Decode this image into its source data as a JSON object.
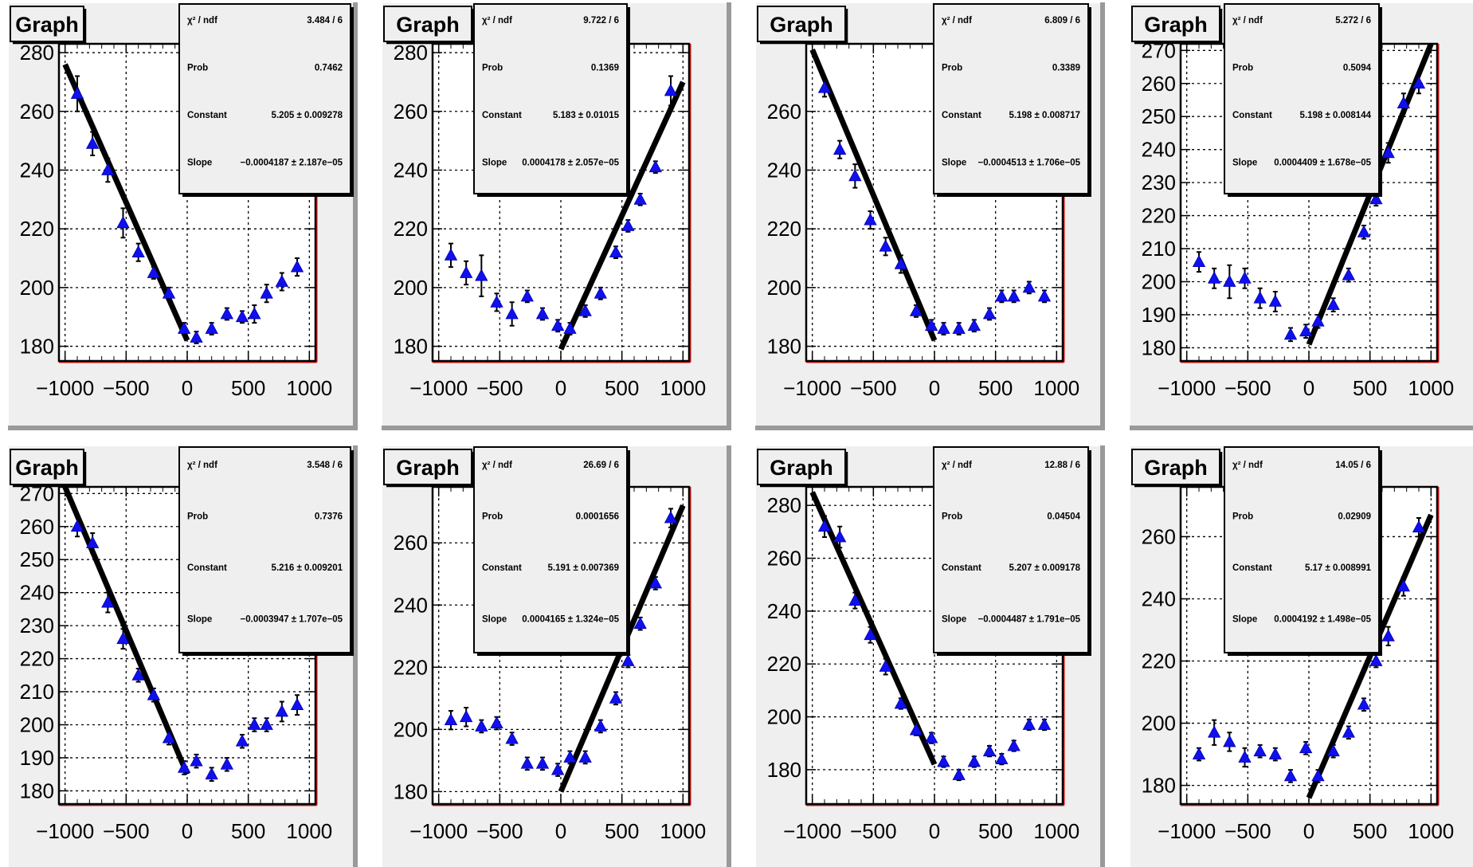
{
  "chart_data": [
    {
      "type": "scatter",
      "title": "Graph",
      "xlim": [
        -1050,
        1050
      ],
      "ylim": [
        175,
        283
      ],
      "xticks": [
        -1000,
        -500,
        0,
        500,
        1000
      ],
      "yticks": [
        180,
        200,
        220,
        240,
        260,
        280
      ],
      "grid": true,
      "x": [
        -900,
        -775,
        -650,
        -525,
        -400,
        -275,
        -150,
        -25,
        75,
        200,
        325,
        450,
        550,
        650,
        775,
        900
      ],
      "y": [
        266,
        249,
        240,
        222,
        212,
        205,
        198,
        186,
        183,
        186,
        191,
        190,
        191,
        198,
        202,
        207
      ],
      "yerr": [
        6,
        4,
        4,
        5,
        3,
        2,
        2,
        2,
        2,
        2,
        2,
        2,
        3,
        3,
        3,
        3
      ],
      "fit": {
        "x": [
          -1000,
          0
        ],
        "y": [
          276,
          182
        ]
      },
      "stats": [
        {
          "label": "χ² / ndf",
          "value": "3.484 / 6"
        },
        {
          "label": "Prob",
          "value": "0.7462"
        },
        {
          "label": "Constant",
          "value": "5.205 ± 0.009278"
        },
        {
          "label": "Slope",
          "value": "−0.0004187 ± 2.187e−05"
        }
      ]
    },
    {
      "type": "scatter",
      "title": "Graph",
      "xlim": [
        -1050,
        1050
      ],
      "ylim": [
        175,
        283
      ],
      "xticks": [
        -1000,
        -500,
        0,
        500,
        1000
      ],
      "yticks": [
        180,
        200,
        220,
        240,
        260,
        280
      ],
      "grid": true,
      "x": [
        -900,
        -775,
        -650,
        -525,
        -400,
        -275,
        -150,
        -25,
        75,
        200,
        325,
        450,
        550,
        650,
        775,
        900
      ],
      "y": [
        211,
        205,
        204,
        195,
        191,
        197,
        191,
        187,
        186,
        192,
        198,
        212,
        221,
        230,
        241,
        267
      ],
      "yerr": [
        4,
        4,
        7,
        3,
        4,
        2,
        2,
        2,
        2,
        2,
        2,
        2,
        2,
        2,
        2,
        5
      ],
      "fit": {
        "x": [
          0,
          1000
        ],
        "y": [
          179,
          270
        ]
      },
      "stats": [
        {
          "label": "χ² / ndf",
          "value": "9.722 / 6"
        },
        {
          "label": "Prob",
          "value": "0.1369"
        },
        {
          "label": "Constant",
          "value": "5.183 ± 0.01015"
        },
        {
          "label": "Slope",
          "value": "0.0004178 ± 2.057e−05"
        }
      ]
    },
    {
      "type": "scatter",
      "title": "Graph",
      "xlim": [
        -1050,
        1050
      ],
      "ylim": [
        175,
        283
      ],
      "xticks": [
        -1000,
        -500,
        0,
        500,
        1000
      ],
      "yticks": [
        180,
        200,
        220,
        240,
        260
      ],
      "grid": true,
      "x": [
        -900,
        -775,
        -650,
        -525,
        -400,
        -275,
        -150,
        -25,
        75,
        200,
        325,
        450,
        550,
        650,
        775,
        900
      ],
      "y": [
        268,
        247,
        238,
        223,
        214,
        208,
        192,
        187,
        186,
        186,
        187,
        191,
        197,
        197,
        200,
        197
      ],
      "yerr": [
        3,
        3,
        4,
        3,
        3,
        3,
        2,
        2,
        2,
        2,
        2,
        2,
        2,
        2,
        2,
        2
      ],
      "fit": {
        "x": [
          -1000,
          0
        ],
        "y": [
          281,
          182
        ]
      },
      "stats": [
        {
          "label": "χ² / ndf",
          "value": "6.809 / 6"
        },
        {
          "label": "Prob",
          "value": "0.3389"
        },
        {
          "label": "Constant",
          "value": "5.198 ± 0.008717"
        },
        {
          "label": "Slope",
          "value": "−0.0004513 ± 1.706e−05"
        }
      ]
    },
    {
      "type": "scatter",
      "title": "Graph",
      "xlim": [
        -1050,
        1050
      ],
      "ylim": [
        176,
        272
      ],
      "xticks": [
        -1000,
        -500,
        0,
        500,
        1000
      ],
      "yticks": [
        180,
        190,
        200,
        210,
        220,
        230,
        240,
        250,
        260,
        270
      ],
      "grid": true,
      "x": [
        -900,
        -775,
        -650,
        -525,
        -400,
        -275,
        -150,
        -25,
        75,
        200,
        325,
        450,
        550,
        650,
        775,
        900
      ],
      "y": [
        206,
        201,
        200,
        201,
        195,
        194,
        184,
        185,
        188,
        193,
        202,
        215,
        225,
        239,
        254,
        260
      ],
      "yerr": [
        3,
        3,
        5,
        3,
        3,
        3,
        2,
        2,
        2,
        2,
        2,
        2,
        2,
        3,
        3,
        3
      ],
      "fit": {
        "x": [
          0,
          1000
        ],
        "y": [
          181,
          272
        ]
      },
      "stats": [
        {
          "label": "χ² / ndf",
          "value": "5.272 / 6"
        },
        {
          "label": "Prob",
          "value": "0.5094"
        },
        {
          "label": "Constant",
          "value": "5.198 ± 0.008144"
        },
        {
          "label": "Slope",
          "value": "0.0004409 ± 1.678e−05"
        }
      ]
    },
    {
      "type": "scatter",
      "title": "Graph",
      "xlim": [
        -1050,
        1050
      ],
      "ylim": [
        176,
        272
      ],
      "xticks": [
        -1000,
        -500,
        0,
        500,
        1000
      ],
      "yticks": [
        180,
        190,
        200,
        210,
        220,
        230,
        240,
        250,
        260,
        270
      ],
      "grid": true,
      "x": [
        -900,
        -775,
        -650,
        -525,
        -400,
        -275,
        -150,
        -25,
        75,
        200,
        325,
        450,
        550,
        650,
        775,
        900
      ],
      "y": [
        260,
        255,
        237,
        226,
        215,
        209,
        196,
        187,
        189,
        185,
        188,
        195,
        200,
        200,
        204,
        206
      ],
      "yerr": [
        3,
        3,
        3,
        3,
        2,
        2,
        2,
        2,
        2,
        2,
        2,
        2,
        2,
        2,
        3,
        3
      ],
      "fit": {
        "x": [
          -1000,
          0
        ],
        "y": [
          272,
          185
        ]
      },
      "stats": [
        {
          "label": "χ² / ndf",
          "value": "3.548 / 6"
        },
        {
          "label": "Prob",
          "value": "0.7376"
        },
        {
          "label": "Constant",
          "value": "5.216 ± 0.009201"
        },
        {
          "label": "Slope",
          "value": "−0.0003947 ± 1.707e−05"
        }
      ]
    },
    {
      "type": "scatter",
      "title": "Graph",
      "xlim": [
        -1050,
        1050
      ],
      "ylim": [
        176,
        278
      ],
      "xticks": [
        -1000,
        -500,
        0,
        500,
        1000
      ],
      "yticks": [
        180,
        200,
        220,
        240,
        260
      ],
      "grid": true,
      "x": [
        -900,
        -775,
        -650,
        -525,
        -400,
        -275,
        -150,
        -25,
        75,
        200,
        325,
        450,
        550,
        650,
        775,
        900
      ],
      "y": [
        203,
        204,
        201,
        202,
        197,
        189,
        189,
        187,
        191,
        191,
        201,
        210,
        222,
        234,
        247,
        268
      ],
      "yerr": [
        3,
        3,
        2,
        2,
        2,
        2,
        2,
        2,
        2,
        2,
        2,
        2,
        2,
        2,
        2,
        3
      ],
      "fit": {
        "x": [
          0,
          1000
        ],
        "y": [
          180,
          272
        ]
      },
      "stats": [
        {
          "label": "χ² / ndf",
          "value": "26.69 / 6"
        },
        {
          "label": "Prob",
          "value": "0.0001656"
        },
        {
          "label": "Constant",
          "value": "5.191 ± 0.007369"
        },
        {
          "label": "Slope",
          "value": "0.0004165 ± 1.324e−05"
        }
      ]
    },
    {
      "type": "scatter",
      "title": "Graph",
      "xlim": [
        -1050,
        1050
      ],
      "ylim": [
        167,
        287
      ],
      "xticks": [
        -1000,
        -500,
        0,
        500,
        1000
      ],
      "yticks": [
        180,
        200,
        220,
        240,
        260,
        280
      ],
      "grid": true,
      "x": [
        -900,
        -775,
        -650,
        -525,
        -400,
        -275,
        -150,
        -25,
        75,
        200,
        325,
        450,
        550,
        650,
        775,
        900
      ],
      "y": [
        272,
        268,
        244,
        231,
        219,
        205,
        195,
        192,
        183,
        178,
        183,
        187,
        184,
        189,
        197,
        197
      ],
      "yerr": [
        4,
        4,
        3,
        3,
        3,
        2,
        2,
        2,
        2,
        2,
        2,
        2,
        2,
        2,
        2,
        2
      ],
      "fit": {
        "x": [
          -1000,
          0
        ],
        "y": [
          285,
          182
        ]
      },
      "stats": [
        {
          "label": "χ² / ndf",
          "value": "12.88 / 6"
        },
        {
          "label": "Prob",
          "value": "0.04504"
        },
        {
          "label": "Constant",
          "value": "5.207 ± 0.009178"
        },
        {
          "label": "Slope",
          "value": "−0.0004487 ± 1.791e−05"
        }
      ]
    },
    {
      "type": "scatter",
      "title": "Graph",
      "xlim": [
        -1050,
        1050
      ],
      "ylim": [
        174,
        276
      ],
      "xticks": [
        -1000,
        -500,
        0,
        500,
        1000
      ],
      "yticks": [
        180,
        200,
        220,
        240,
        260
      ],
      "grid": true,
      "x": [
        -900,
        -775,
        -650,
        -525,
        -400,
        -275,
        -150,
        -25,
        75,
        200,
        325,
        450,
        550,
        650,
        775,
        900
      ],
      "y": [
        190,
        197,
        194,
        189,
        191,
        190,
        183,
        192,
        183,
        191,
        197,
        206,
        220,
        228,
        244,
        263
      ],
      "yerr": [
        2,
        4,
        3,
        3,
        2,
        2,
        2,
        2,
        2,
        2,
        2,
        2,
        2,
        3,
        3,
        3
      ],
      "fit": {
        "x": [
          0,
          1000
        ],
        "y": [
          176,
          267
        ]
      },
      "stats": [
        {
          "label": "χ² / ndf",
          "value": "14.05 / 6"
        },
        {
          "label": "Prob",
          "value": "0.02909"
        },
        {
          "label": "Constant",
          "value": "5.17 ± 0.008991"
        },
        {
          "label": "Slope",
          "value": "0.0004192 ± 1.498e−05"
        }
      ]
    }
  ]
}
